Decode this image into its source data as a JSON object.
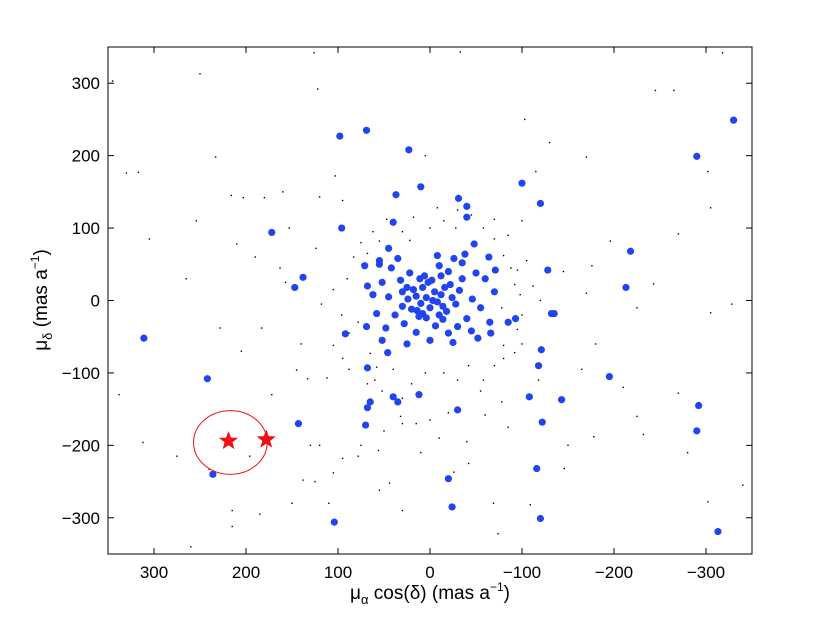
{
  "chart_data": {
    "type": "scatter",
    "x_axis_reversed": true,
    "xlim": [
      -350,
      350
    ],
    "ylim": [
      -350,
      350
    ],
    "xticks": [
      300,
      200,
      100,
      0,
      -100,
      -200,
      -300
    ],
    "yticks": [
      300,
      200,
      100,
      0,
      -100,
      -200,
      -300
    ],
    "xtick_labels": [
      "300",
      "200",
      "100",
      "0",
      "−100",
      "−200",
      "−300"
    ],
    "ytick_labels": [
      "300",
      "200",
      "100",
      "0",
      "−100",
      "−200",
      "−300"
    ],
    "xlabel": {
      "mu": "μ",
      "sub": "α",
      "main": " cos(δ) (mas a",
      "sup": "−1",
      "close": ")"
    },
    "ylabel": {
      "mu": "μ",
      "sub": "δ",
      "main": " (mas a",
      "sup": "−1",
      "close": ")"
    },
    "grid": false,
    "colors": {
      "members": "#2244ee",
      "field": "#000000",
      "highlight": "#ee1111"
    },
    "series": [
      {
        "marker": "large-dot",
        "points": [
          [
            98,
            227
          ],
          [
            69,
            235
          ],
          [
            23,
            208
          ],
          [
            10,
            157
          ],
          [
            -31,
            141
          ],
          [
            -40,
            130
          ],
          [
            -40,
            115
          ],
          [
            -100,
            162
          ],
          [
            -120,
            134
          ],
          [
            -290,
            199
          ],
          [
            -330,
            249
          ],
          [
            172,
            94
          ],
          [
            96,
            100
          ],
          [
            37,
            146
          ],
          [
            40,
            108
          ],
          [
            45,
            72
          ],
          [
            71,
            48
          ],
          [
            55,
            55
          ],
          [
            -48,
            78
          ],
          [
            -38,
            64
          ],
          [
            -26,
            58
          ],
          [
            -64,
            60
          ],
          [
            -50,
            38
          ],
          [
            -71,
            42
          ],
          [
            -128,
            42
          ],
          [
            -135,
            -18
          ],
          [
            -218,
            68
          ],
          [
            -213,
            18
          ],
          [
            147,
            18
          ],
          [
            138,
            32
          ],
          [
            92,
            -46
          ],
          [
            69,
            -36
          ],
          [
            52,
            -55
          ],
          [
            46,
            -72
          ],
          [
            -20,
            -45
          ],
          [
            -52,
            -52
          ],
          [
            -66,
            -45
          ],
          [
            -93,
            -25
          ],
          [
            -85,
            -30
          ],
          [
            -132,
            -18
          ],
          [
            -121,
            -68
          ],
          [
            -118,
            -90
          ],
          [
            311,
            -52
          ],
          [
            242,
            -108
          ],
          [
            -195,
            -105
          ],
          [
            -108,
            -133
          ],
          [
            -143,
            -137
          ],
          [
            -122,
            -168
          ],
          [
            -116,
            -232
          ],
          [
            -292,
            -145
          ],
          [
            -290,
            -180
          ],
          [
            -313,
            -319
          ],
          [
            68,
            -93
          ],
          [
            65,
            -140
          ],
          [
            68,
            -148
          ],
          [
            70,
            -172
          ],
          [
            40,
            -133
          ],
          [
            35,
            -140
          ],
          [
            12,
            -130
          ],
          [
            -30,
            -151
          ],
          [
            143,
            -170
          ],
          [
            -20,
            -246
          ],
          [
            -24,
            -285
          ],
          [
            104,
            -306
          ],
          [
            -120,
            -301
          ],
          [
            236,
            -240
          ],
          [
            8,
            18
          ],
          [
            -5,
            12
          ],
          [
            4,
            4
          ],
          [
            -3,
            0
          ],
          [
            10,
            -4
          ],
          [
            0,
            -10
          ],
          [
            -8,
            -2
          ],
          [
            15,
            6
          ],
          [
            -12,
            8
          ],
          [
            20,
            -12
          ],
          [
            -18,
            -15
          ],
          [
            2,
            25
          ],
          [
            -22,
            22
          ],
          [
            25,
            18
          ],
          [
            -28,
            -5
          ],
          [
            30,
            -8
          ],
          [
            12,
            -22
          ],
          [
            -14,
            -26
          ],
          [
            32,
            28
          ],
          [
            -35,
            30
          ],
          [
            38,
            -20
          ],
          [
            -40,
            -25
          ],
          [
            6,
            34
          ],
          [
            -6,
            -35
          ],
          [
            45,
            5
          ],
          [
            -46,
            2
          ],
          [
            22,
            38
          ],
          [
            -20,
            40
          ],
          [
            28,
            -32
          ],
          [
            -30,
            -36
          ],
          [
            52,
            25
          ],
          [
            -55,
            -10
          ],
          [
            -10,
            48
          ],
          [
            15,
            -44
          ],
          [
            58,
            -18
          ],
          [
            -60,
            30
          ],
          [
            42,
            45
          ],
          [
            -45,
            -42
          ],
          [
            48,
            -38
          ],
          [
            -35,
            52
          ],
          [
            0,
            -55
          ],
          [
            62,
            8
          ],
          [
            -65,
            -30
          ],
          [
            -25,
            -58
          ],
          [
            35,
            58
          ],
          [
            -8,
            62
          ],
          [
            68,
            20
          ],
          [
            -70,
            12
          ],
          [
            25,
            -60
          ],
          [
            55,
            50
          ],
          [
            18,
            15
          ],
          [
            -16,
            18
          ],
          [
            24,
            2
          ],
          [
            -24,
            4
          ],
          [
            4,
            -24
          ],
          [
            -2,
            28
          ],
          [
            14,
            -14
          ],
          [
            -14,
            -8
          ],
          [
            8,
            -18
          ],
          [
            -10,
            -20
          ],
          [
            30,
            12
          ],
          [
            -32,
            14
          ],
          [
            11,
            30
          ],
          [
            -12,
            34
          ]
        ]
      },
      {
        "marker": "small-dot",
        "points": [
          [
            250,
            313
          ],
          [
            126,
            342
          ],
          [
            -33,
            343
          ],
          [
            -318,
            342
          ],
          [
            -265,
            290
          ],
          [
            -245,
            290
          ],
          [
            -103,
            250
          ],
          [
            122,
            292
          ],
          [
            345,
            303
          ],
          [
            330,
            176
          ],
          [
            317,
            177
          ],
          [
            254,
            110
          ],
          [
            233,
            198
          ],
          [
            216,
            145
          ],
          [
            203,
            142
          ],
          [
            180,
            142
          ],
          [
            210,
            78
          ],
          [
            190,
            60
          ],
          [
            160,
            150
          ],
          [
            153,
            100
          ],
          [
            124,
            72
          ],
          [
            163,
            45
          ],
          [
            157,
            25
          ],
          [
            183,
            -38
          ],
          [
            205,
            -70
          ],
          [
            228,
            -38
          ],
          [
            172,
            -130
          ],
          [
            133,
            -108
          ],
          [
            145,
            -96
          ],
          [
            112,
            -107
          ],
          [
            65,
            -73
          ],
          [
            58,
            -92
          ],
          [
            30,
            -135
          ],
          [
            10,
            -210
          ],
          [
            56,
            -207
          ],
          [
            44,
            -252
          ],
          [
            55,
            -262
          ],
          [
            30,
            -290
          ],
          [
            -26,
            -237
          ],
          [
            -69,
            -280
          ],
          [
            -74,
            -322
          ],
          [
            -109,
            -282
          ],
          [
            -146,
            -232
          ],
          [
            -150,
            -200
          ],
          [
            -178,
            -188
          ],
          [
            -225,
            -160
          ],
          [
            -232,
            -185
          ],
          [
            -270,
            -128
          ],
          [
            -280,
            -210
          ],
          [
            -302,
            -278
          ],
          [
            -340,
            -255
          ],
          [
            -328,
            -5
          ],
          [
            -305,
            -17
          ],
          [
            -225,
            -10
          ],
          [
            -180,
            -60
          ],
          [
            -165,
            -95
          ],
          [
            -170,
            10
          ],
          [
            -176,
            48
          ],
          [
            -196,
            82
          ],
          [
            -270,
            92
          ],
          [
            -305,
            128
          ],
          [
            -302,
            178
          ],
          [
            -243,
            23
          ],
          [
            -170,
            198
          ],
          [
            -130,
            218
          ],
          [
            -115,
            178
          ],
          [
            -70,
            112
          ],
          [
            -85,
            90
          ],
          [
            -105,
            55
          ],
          [
            -95,
            42
          ],
          [
            -112,
            20
          ],
          [
            -120,
            0
          ],
          [
            -100,
            -60
          ],
          [
            -80,
            -80
          ],
          [
            -78,
            -140
          ],
          [
            -85,
            -175
          ],
          [
            -55,
            -125
          ],
          [
            -40,
            -195
          ],
          [
            -42,
            -225
          ],
          [
            -10,
            -190
          ],
          [
            0,
            -165
          ],
          [
            15,
            -170
          ],
          [
            30,
            -170
          ],
          [
            50,
            -180
          ],
          [
            75,
            -200
          ],
          [
            78,
            -215
          ],
          [
            95,
            -218
          ],
          [
            105,
            -238
          ],
          [
            110,
            -280
          ],
          [
            125,
            -250
          ],
          [
            138,
            -248
          ],
          [
            120,
            -200
          ],
          [
            185,
            -295
          ],
          [
            215,
            -312
          ],
          [
            215,
            -290
          ],
          [
            240,
            -233
          ],
          [
            196,
            -215
          ],
          [
            260,
            -340
          ],
          [
            275,
            -215
          ],
          [
            312,
            -196
          ],
          [
            338,
            -130
          ],
          [
            305,
            85
          ],
          [
            265,
            30
          ],
          [
            103,
            172
          ],
          [
            120,
            143
          ],
          [
            95,
            138
          ],
          [
            47,
            112
          ],
          [
            62,
            95
          ],
          [
            75,
            80
          ],
          [
            83,
            60
          ],
          [
            90,
            30
          ],
          [
            105,
            15
          ],
          [
            118,
            -5
          ],
          [
            96,
            -20
          ],
          [
            88,
            -45
          ],
          [
            105,
            -62
          ],
          [
            95,
            -80
          ],
          [
            88,
            -95
          ],
          [
            68,
            -115
          ],
          [
            52,
            -125
          ],
          [
            32,
            -160
          ],
          [
            20,
            -115
          ],
          [
            5,
            -100
          ],
          [
            -15,
            -100
          ],
          [
            -30,
            -110
          ],
          [
            -42,
            -90
          ],
          [
            -58,
            -110
          ],
          [
            -70,
            -90
          ],
          [
            -80,
            -62
          ],
          [
            -92,
            -72
          ],
          [
            -95,
            -40
          ],
          [
            -100,
            -20
          ],
          [
            -98,
            8
          ],
          [
            -92,
            22
          ],
          [
            -88,
            45
          ],
          [
            -80,
            62
          ],
          [
            -70,
            85
          ],
          [
            -58,
            100
          ],
          [
            -45,
            118
          ],
          [
            -30,
            125
          ],
          [
            -15,
            110
          ],
          [
            0,
            100
          ],
          [
            18,
            115
          ],
          [
            30,
            95
          ],
          [
            22,
            83
          ],
          [
            55,
            82
          ],
          [
            68,
            65
          ],
          [
            40,
            -95
          ],
          [
            -20,
            -155
          ],
          [
            -60,
            -158
          ],
          [
            5,
            200
          ],
          [
            -8,
            128
          ],
          [
            -28,
            100
          ],
          [
            60,
            -110
          ],
          [
            78,
            -30
          ],
          [
            -78,
            -10
          ],
          [
            -118,
            -110
          ],
          [
            130,
            -200
          ],
          [
            140,
            -60
          ],
          [
            -145,
            40
          ],
          [
            -100,
            110
          ],
          [
            -210,
            -120
          ],
          [
            150,
            -280
          ]
        ]
      },
      {
        "marker": "star",
        "points": [
          [
            219,
            -194
          ],
          [
            178,
            -192
          ]
        ]
      },
      {
        "marker": "ellipse",
        "center": [
          217,
          -196
        ],
        "radius": [
          40,
          44
        ]
      }
    ]
  }
}
